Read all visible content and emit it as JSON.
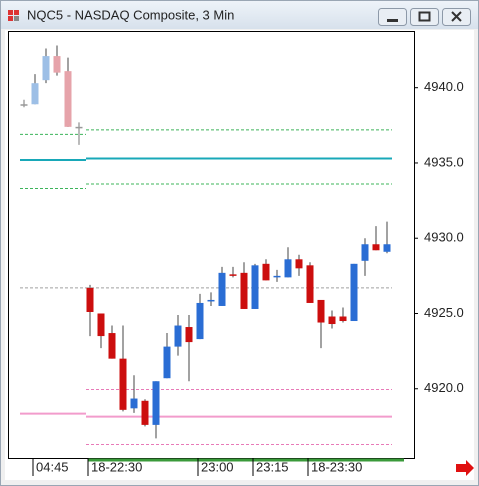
{
  "chart_data": {
    "type": "candlestick",
    "title": "NQC5 - NASDAQ Composite, 3 Min",
    "categories": [
      null,
      "04:45",
      null,
      null,
      null,
      null,
      "18-22:30",
      null,
      null,
      null,
      null,
      null,
      null,
      null,
      null,
      null,
      "23:00",
      null,
      null,
      null,
      null,
      "23:15",
      null,
      null,
      null,
      null,
      "18-23:30",
      null,
      null,
      null,
      null,
      null,
      null,
      null
    ],
    "open": [
      4938.9,
      4938.9,
      4940.5,
      4942.1,
      4941.1,
      4937.4,
      4926.7,
      4925.0,
      4923.7,
      4922.0,
      4918.7,
      4919.2,
      4917.6,
      4920.7,
      4922.8,
      4924.1,
      4923.3,
      4925.8,
      4925.5,
      4927.6,
      4927.7,
      4925.3,
      4928.3,
      4927.4,
      4927.4,
      4928.6,
      4928.2,
      4925.9,
      4924.8,
      4924.8,
      4924.5,
      4928.5,
      4929.6,
      4929.1
    ],
    "high": [
      4939.2,
      4940.9,
      4942.6,
      4942.8,
      4942.0,
      4937.7,
      4926.9,
      4925.0,
      4924.2,
      4924.2,
      4920.9,
      4919.3,
      4920.5,
      4923.7,
      4924.9,
      4924.9,
      4926.3,
      4926.4,
      4928.1,
      4928.1,
      4928.4,
      4928.3,
      4928.6,
      4927.9,
      4929.4,
      4928.9,
      4928.4,
      4925.9,
      4925.2,
      4925.4,
      4928.3,
      4930.0,
      4930.8,
      4931.1
    ],
    "low": [
      4938.7,
      4938.9,
      4940.3,
      4940.8,
      4937.4,
      4936.2,
      4923.5,
      4922.7,
      4922.0,
      4918.5,
      4918.4,
      4917.5,
      4916.7,
      4920.7,
      4922.2,
      4920.5,
      4923.3,
      4925.5,
      4925.5,
      4927.4,
      4925.3,
      4925.3,
      4927.2,
      4927.1,
      4927.4,
      4927.5,
      4925.7,
      4922.7,
      4924.0,
      4924.4,
      4924.5,
      4927.5,
      4929.2,
      4929.0
    ],
    "close": [
      4938.9,
      4940.3,
      4942.1,
      4941.0,
      4937.4,
      4937.4,
      4925.1,
      4923.5,
      4922.0,
      4918.6,
      4919.35,
      4917.6,
      4920.5,
      4922.8,
      4924.2,
      4923.1,
      4925.7,
      4925.9,
      4927.7,
      4927.5,
      4925.3,
      4928.2,
      4927.2,
      4927.5,
      4928.6,
      4928.0,
      4925.7,
      4924.4,
      4924.3,
      4924.5,
      4928.3,
      4929.6,
      4929.2,
      4929.6
    ],
    "candle_colors": [
      "#999999",
      "#9dbfe6",
      "#9dbfe6",
      "#e6a3aa",
      "#e6a3aa",
      "#999999",
      "#cc0e0e",
      "#cc0e0e",
      "#cc0e0e",
      "#cc0e0e",
      "#2a6dd4",
      "#cc0e0e",
      "#2a6dd4",
      "#2a6dd4",
      "#2a6dd4",
      "#cc0e0e",
      "#2a6dd4",
      "#2a6dd4",
      "#2a6dd4",
      "#cc0e0e",
      "#cc0e0e",
      "#2a6dd4",
      "#cc0e0e",
      "#2a6dd4",
      "#2a6dd4",
      "#cc0e0e",
      "#cc0e0e",
      "#cc0e0e",
      "#cc0e0e",
      "#cc0e0e",
      "#2a6dd4",
      "#2a6dd4",
      "#cc0e0e",
      "#2a6dd4"
    ],
    "levels": [
      {
        "color": "#3cb45a",
        "dash": "3,2",
        "width": 1,
        "values": [
          4936.9,
          4937.2
        ]
      },
      {
        "color": "#18a8b8",
        "dash": "none",
        "width": 2,
        "values": [
          4935.2,
          4935.3
        ]
      },
      {
        "color": "#3cb45a",
        "dash": "3,2",
        "width": 1,
        "values": [
          4933.3,
          4933.6
        ]
      },
      {
        "color": "#a0a0a0",
        "dash": "3,2",
        "width": 1,
        "values": [
          4926.7,
          4926.7
        ]
      },
      {
        "color": "#e87ab8",
        "dash": "3,2",
        "width": 1,
        "values": [
          null,
          4919.95
        ]
      },
      {
        "color": "#f29ccc",
        "dash": "none",
        "width": 2,
        "values": [
          4918.35,
          4918.15
        ]
      },
      {
        "color": "#e87ab8",
        "dash": "3,2",
        "width": 1,
        "values": [
          null,
          4916.3
        ]
      }
    ],
    "ylim": [
      4915.4,
      4943.7
    ],
    "yticks": [
      {
        "value": 4920,
        "label": "4920.0"
      },
      {
        "value": 4925,
        "label": "4925.0"
      },
      {
        "value": 4930,
        "label": "4930.0"
      },
      {
        "value": 4935,
        "label": "4935.0"
      },
      {
        "value": 4940,
        "label": "4940.0"
      }
    ]
  }
}
